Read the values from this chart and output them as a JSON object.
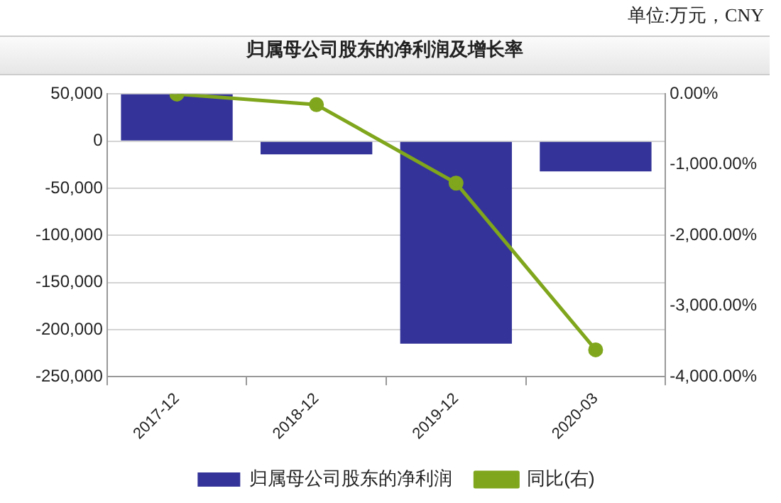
{
  "chart_data": {
    "type": "bar",
    "title": "归属母公司股东的净利润及增长率",
    "annotations": [
      "单位:万元，CNY"
    ],
    "categories": [
      "2017-12",
      "2018-12",
      "2019-12",
      "2020-03"
    ],
    "series": [
      {
        "name": "归属母公司股东的净利润",
        "color": "#333399",
        "values": [
          50000,
          -14000,
          -215000,
          -32000
        ]
      },
      {
        "name": "同比(右)",
        "type": "line",
        "axis": "y2",
        "color": "#7fa61c",
        "values": [
          0,
          -150,
          -1260,
          -3620
        ]
      }
    ],
    "ylim": [
      -250000,
      50000
    ],
    "yticks": [
      {
        "value": -250000,
        "label": "-250,000"
      },
      {
        "value": -200000,
        "label": "-200,000"
      },
      {
        "value": -150000,
        "label": "-150,000"
      },
      {
        "value": -100000,
        "label": "-100,000"
      },
      {
        "value": -50000,
        "label": "-50,000"
      },
      0,
      {
        "value": 50000,
        "label": "50,000"
      }
    ],
    "y2lim": [
      -4000,
      0
    ],
    "y2ticks": [
      {
        "value": -4000,
        "label": "-4,000.00%"
      },
      {
        "value": -3000,
        "label": "-3,000.00%"
      },
      {
        "value": -2000,
        "label": "-2,000.00%"
      },
      {
        "value": -1000,
        "label": "-1,000.00%"
      },
      {
        "value": 0,
        "label": "0.00%"
      }
    ],
    "grid": "y",
    "legend": "bottom",
    "marker": "circle",
    "line_style": "solid"
  }
}
